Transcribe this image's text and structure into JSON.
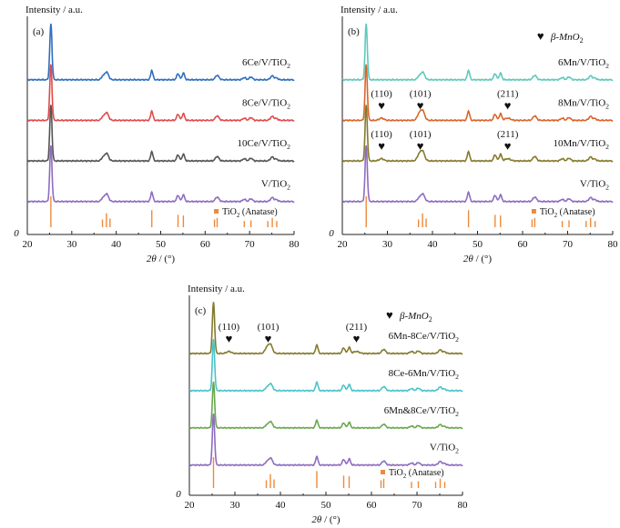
{
  "chart_data": [
    {
      "type": "line",
      "panel_label": "(a)",
      "ylabel": "Intensity / a.u.",
      "xlabel_symbol": "2θ",
      "xlabel_unit": " / (°)",
      "origin_label": "0",
      "xlim": [
        20,
        80
      ],
      "xticks": [
        "20",
        "30",
        "40",
        "50",
        "60",
        "70",
        "80"
      ],
      "legend_marker": "",
      "legend_text": "",
      "series": [
        {
          "name_base": "6Ce/V/TiO",
          "name_sub": "2",
          "color": "#2f6fbf",
          "pattern": "anatase",
          "offset": 3.05,
          "scale": 1.0
        },
        {
          "name_base": "8Ce/V/TiO",
          "name_sub": "2",
          "color": "#e04b4b",
          "pattern": "anatase",
          "offset": 2.25,
          "scale": 1.0
        },
        {
          "name_base": "10Ce/V/TiO",
          "name_sub": "2",
          "color": "#555555",
          "pattern": "anatase",
          "offset": 1.45,
          "scale": 1.0
        },
        {
          "name_base": "V/TiO",
          "name_sub": "2",
          "color": "#8e6cc0",
          "pattern": "anatase",
          "offset": 0.65,
          "scale": 1.0
        }
      ],
      "reference": {
        "label_base": "TiO",
        "label_sub": "2",
        "label_suffix": " (Anatase)",
        "color": "#ee8a3c",
        "peaks": [
          [
            25.3,
            1.0
          ],
          [
            36.9,
            0.25
          ],
          [
            37.8,
            0.45
          ],
          [
            38.6,
            0.28
          ],
          [
            48.0,
            0.55
          ],
          [
            53.9,
            0.4
          ],
          [
            55.1,
            0.38
          ],
          [
            62.1,
            0.25
          ],
          [
            62.7,
            0.3
          ],
          [
            68.8,
            0.2
          ],
          [
            70.3,
            0.22
          ],
          [
            74.1,
            0.2
          ],
          [
            75.1,
            0.3
          ],
          [
            76.1,
            0.2
          ]
        ]
      },
      "annotations": []
    },
    {
      "type": "line",
      "panel_label": "(b)",
      "ylabel": "Intensity / a.u.",
      "xlabel_symbol": "2θ",
      "xlabel_unit": " / (°)",
      "origin_label": "0",
      "xlim": [
        20,
        80
      ],
      "xticks": [
        "20",
        "30",
        "40",
        "50",
        "60",
        "70",
        "80"
      ],
      "legend_marker": "♥",
      "legend_text": "β-MnO",
      "legend_sub": "2",
      "series": [
        {
          "name_base": "6Mn/V/TiO",
          "name_sub": "2",
          "color": "#5ec9bd",
          "pattern": "anatase",
          "offset": 3.05,
          "scale": 1.0
        },
        {
          "name_base": "8Mn/V/TiO",
          "name_sub": "2",
          "color": "#d9662c",
          "pattern": "mno2",
          "offset": 2.25,
          "scale": 1.0
        },
        {
          "name_base": "10Mn/V/TiO",
          "name_sub": "2",
          "color": "#857a2c",
          "pattern": "mno2",
          "offset": 1.45,
          "scale": 1.0
        },
        {
          "name_base": "V/TiO",
          "name_sub": "2",
          "color": "#8e6cc0",
          "pattern": "anatase",
          "offset": 0.65,
          "scale": 1.0
        }
      ],
      "reference": {
        "label_base": "TiO",
        "label_sub": "2",
        "label_suffix": " (Anatase)",
        "color": "#ee8a3c",
        "peaks": [
          [
            25.3,
            1.0
          ],
          [
            36.9,
            0.25
          ],
          [
            37.8,
            0.45
          ],
          [
            38.6,
            0.28
          ],
          [
            48.0,
            0.55
          ],
          [
            53.9,
            0.4
          ],
          [
            55.1,
            0.38
          ],
          [
            62.1,
            0.25
          ],
          [
            62.7,
            0.3
          ],
          [
            68.8,
            0.2
          ],
          [
            70.3,
            0.22
          ],
          [
            74.1,
            0.2
          ],
          [
            75.1,
            0.3
          ],
          [
            76.1,
            0.2
          ]
        ]
      },
      "annotations": [
        {
          "series": 1,
          "x": 28.7,
          "text": "(110)"
        },
        {
          "series": 1,
          "x": 37.3,
          "text": "(101)"
        },
        {
          "series": 1,
          "x": 56.7,
          "text": "(211)"
        },
        {
          "series": 2,
          "x": 28.7,
          "text": "(110)"
        },
        {
          "series": 2,
          "x": 37.3,
          "text": "(101)"
        },
        {
          "series": 2,
          "x": 56.7,
          "text": "(211)"
        }
      ]
    },
    {
      "type": "line",
      "panel_label": "(c)",
      "ylabel": "Intensity / a.u.",
      "xlabel_symbol": "2θ",
      "xlabel_unit": " / (°)",
      "origin_label": "0",
      "xlim": [
        20,
        80
      ],
      "xticks": [
        "20",
        "30",
        "40",
        "50",
        "60",
        "70",
        "80"
      ],
      "legend_marker": "♥",
      "legend_text": "β-MnO",
      "legend_sub": "2",
      "series": [
        {
          "name_base": "6Mn-8Ce/V/TiO",
          "name_sub": "2",
          "color": "#857a2c",
          "pattern": "mno2",
          "offset": 3.05,
          "scale": 1.0
        },
        {
          "name_base": "8Ce-6Mn/V/TiO",
          "name_sub": "2",
          "color": "#49c3c9",
          "pattern": "anatase",
          "offset": 2.25,
          "scale": 1.0
        },
        {
          "name_base": "6Mn&8Ce/V/TiO",
          "name_sub": "2",
          "color": "#6aa84f",
          "pattern": "anatase",
          "offset": 1.45,
          "scale": 0.9
        },
        {
          "name_base": "V/TiO",
          "name_sub": "2",
          "color": "#8e6cc0",
          "pattern": "anatase",
          "offset": 0.65,
          "scale": 1.0
        }
      ],
      "reference": {
        "label_base": "TiO",
        "label_sub": "2",
        "label_suffix": " (Anatase)",
        "color": "#ee8a3c",
        "peaks": [
          [
            25.3,
            1.0
          ],
          [
            36.9,
            0.25
          ],
          [
            37.8,
            0.45
          ],
          [
            38.6,
            0.28
          ],
          [
            48.0,
            0.55
          ],
          [
            53.9,
            0.4
          ],
          [
            55.1,
            0.38
          ],
          [
            62.1,
            0.25
          ],
          [
            62.7,
            0.3
          ],
          [
            68.8,
            0.2
          ],
          [
            70.3,
            0.22
          ],
          [
            74.1,
            0.2
          ],
          [
            75.1,
            0.3
          ],
          [
            76.1,
            0.2
          ]
        ]
      },
      "annotations": [
        {
          "series": 0,
          "x": 28.7,
          "text": "(110)"
        },
        {
          "series": 0,
          "x": 37.3,
          "text": "(101)"
        },
        {
          "series": 0,
          "x": 56.7,
          "text": "(211)"
        }
      ]
    }
  ]
}
